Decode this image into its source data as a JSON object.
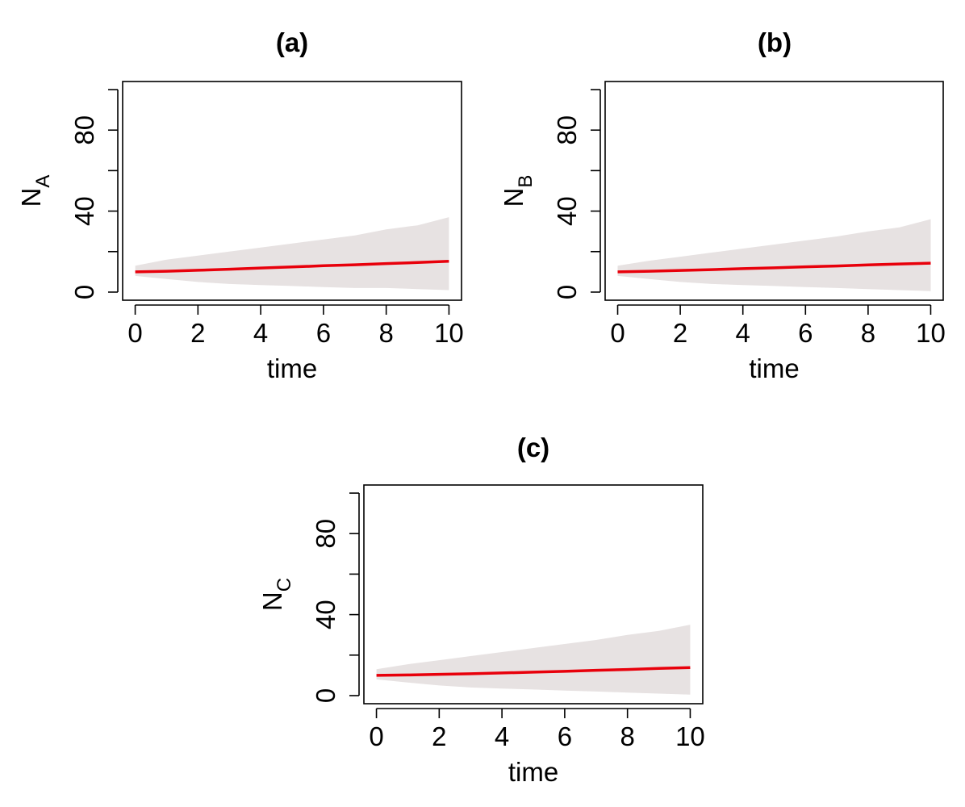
{
  "colors": {
    "mean_line": "#e8000b",
    "band": "#e7e2e2",
    "axis": "#000000"
  },
  "chart_data": [
    {
      "type": "area",
      "title": "(a)",
      "xlabel": "time",
      "ylabel": {
        "main": "N",
        "sub": "A"
      },
      "xlim": [
        0,
        10
      ],
      "ylim": [
        0,
        100
      ],
      "xticks": [
        0,
        2,
        4,
        6,
        8,
        10
      ],
      "yticks": [
        0,
        20,
        40,
        60,
        80,
        100
      ],
      "ytick_labels": [
        0,
        40,
        80
      ],
      "grid": false,
      "series": [
        {
          "kind": "band",
          "x": [
            0,
            1,
            2,
            3,
            4,
            5,
            6,
            7,
            8,
            9,
            10
          ],
          "lower": [
            8,
            6.5,
            5,
            4,
            3.5,
            3,
            2.5,
            2,
            2,
            1.5,
            1
          ],
          "upper": [
            13,
            16,
            18,
            20,
            22,
            24,
            26,
            28,
            31,
            33,
            37
          ]
        },
        {
          "kind": "line",
          "x": [
            0,
            1,
            2,
            3,
            4,
            5,
            6,
            7,
            8,
            9,
            10
          ],
          "y": [
            10,
            10.3,
            10.8,
            11.3,
            11.9,
            12.4,
            13,
            13.5,
            14.1,
            14.6,
            15.2
          ]
        }
      ]
    },
    {
      "type": "area",
      "title": "(b)",
      "xlabel": "time",
      "ylabel": {
        "main": "N",
        "sub": "B"
      },
      "xlim": [
        0,
        10
      ],
      "ylim": [
        0,
        100
      ],
      "xticks": [
        0,
        2,
        4,
        6,
        8,
        10
      ],
      "yticks": [
        0,
        20,
        40,
        60,
        80,
        100
      ],
      "ytick_labels": [
        0,
        40,
        80
      ],
      "grid": false,
      "series": [
        {
          "kind": "band",
          "x": [
            0,
            1,
            2,
            3,
            4,
            5,
            6,
            7,
            8,
            9,
            10
          ],
          "lower": [
            8,
            6.5,
            5,
            4,
            3.5,
            3,
            2.5,
            2,
            1.5,
            1,
            0.5
          ],
          "upper": [
            13,
            15.5,
            17.5,
            19.5,
            21.5,
            23.5,
            25.5,
            27.5,
            30,
            32,
            36
          ]
        },
        {
          "kind": "line",
          "x": [
            0,
            1,
            2,
            3,
            4,
            5,
            6,
            7,
            8,
            9,
            10
          ],
          "y": [
            10,
            10.3,
            10.7,
            11.1,
            11.6,
            12,
            12.5,
            12.9,
            13.4,
            13.9,
            14.3
          ]
        }
      ]
    },
    {
      "type": "area",
      "title": "(c)",
      "xlabel": "time",
      "ylabel": {
        "main": "N",
        "sub": "C"
      },
      "xlim": [
        0,
        10
      ],
      "ylim": [
        0,
        100
      ],
      "xticks": [
        0,
        2,
        4,
        6,
        8,
        10
      ],
      "yticks": [
        0,
        20,
        40,
        60,
        80,
        100
      ],
      "ytick_labels": [
        0,
        40,
        80
      ],
      "grid": false,
      "series": [
        {
          "kind": "band",
          "x": [
            0,
            1,
            2,
            3,
            4,
            5,
            6,
            7,
            8,
            9,
            10
          ],
          "lower": [
            8,
            6.5,
            5,
            4,
            3.5,
            3,
            2.5,
            2,
            1.5,
            1,
            0.5
          ],
          "upper": [
            13,
            15.5,
            17.5,
            19.5,
            21.5,
            23.5,
            25.5,
            27.5,
            30,
            32,
            35
          ]
        },
        {
          "kind": "line",
          "x": [
            0,
            1,
            2,
            3,
            4,
            5,
            6,
            7,
            8,
            9,
            10
          ],
          "y": [
            10,
            10.2,
            10.5,
            10.8,
            11.2,
            11.6,
            12,
            12.5,
            12.9,
            13.4,
            13.8
          ]
        }
      ]
    }
  ]
}
